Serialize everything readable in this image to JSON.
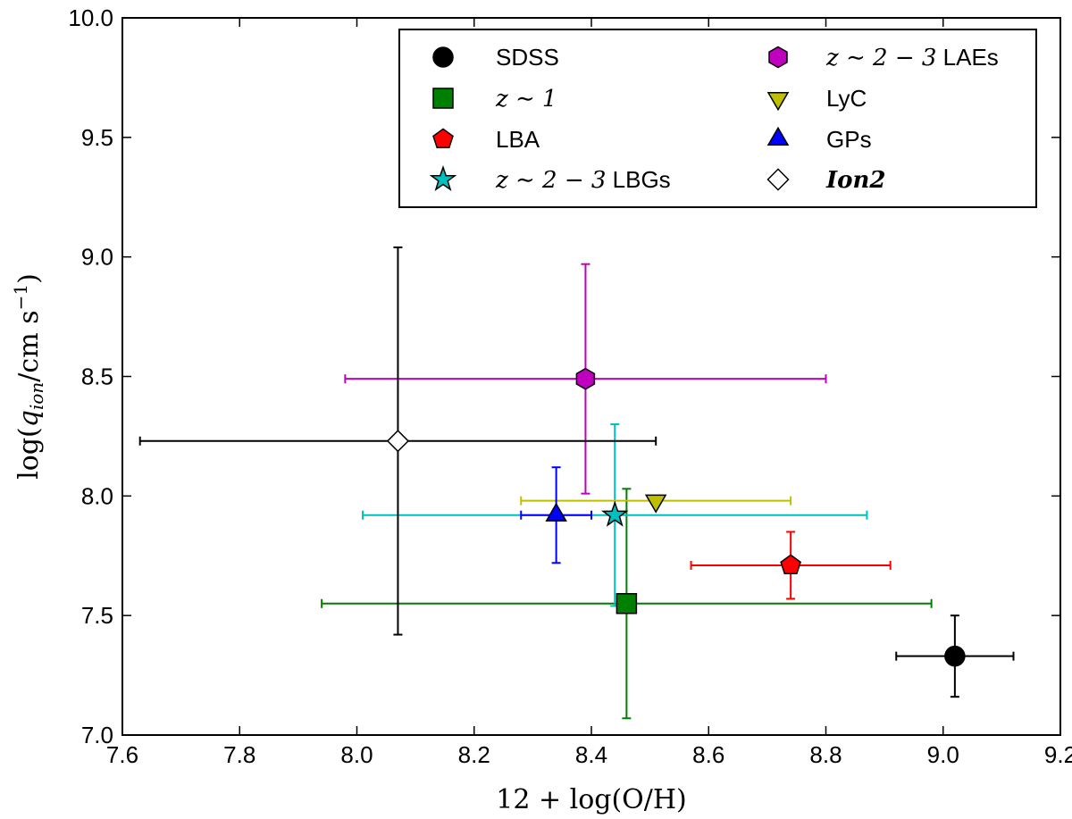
{
  "chart_data": {
    "type": "scatter",
    "title": "",
    "xlabel": "12 + log(O/H)",
    "ylabel": "log(q_ion / cm s⁻¹)",
    "ylabel_parts": {
      "prefix": "log(",
      "q": "q",
      "sub": "ion",
      "mid": "/cm s",
      "sup": "−1",
      "suffix": ")"
    },
    "xlim": [
      7.6,
      9.2
    ],
    "ylim": [
      7.0,
      10.0
    ],
    "x_ticks": [
      7.6,
      7.8,
      8.0,
      8.2,
      8.4,
      8.6,
      8.8,
      9.0,
      9.2
    ],
    "x_tick_labels": [
      "7.6",
      "7.8",
      "8.0",
      "8.2",
      "8.4",
      "8.6",
      "8.8",
      "9.0",
      "9.2"
    ],
    "y_ticks": [
      7.0,
      7.5,
      8.0,
      8.5,
      9.0,
      9.5,
      10.0
    ],
    "y_tick_labels": [
      "7.0",
      "7.5",
      "8.0",
      "8.5",
      "9.0",
      "9.5",
      "10.0"
    ],
    "grid": false,
    "legend_position": "top-right",
    "series": [
      {
        "name": "SDSS",
        "label": "SDSS",
        "label_italic": false,
        "marker": "circle",
        "color": "#000000",
        "ecolor": "#000000",
        "x": 9.02,
        "y": 7.33,
        "xerr": [
          0.1,
          0.1
        ],
        "yerr": [
          0.17,
          0.17
        ]
      },
      {
        "name": "z~1",
        "label": "z ∼ 1",
        "label_italic": true,
        "marker": "square",
        "color": "#007f00",
        "ecolor": "#007f00",
        "x": 8.46,
        "y": 7.55,
        "xerr": [
          0.52,
          0.52
        ],
        "yerr": [
          0.48,
          0.48
        ]
      },
      {
        "name": "LBA",
        "label": "LBA",
        "label_italic": false,
        "marker": "pentagon",
        "color": "#ff0000",
        "ecolor": "#ff0000",
        "x": 8.74,
        "y": 7.71,
        "xerr": [
          0.17,
          0.17
        ],
        "yerr": [
          0.14,
          0.14
        ]
      },
      {
        "name": "z~2-3 LBGs",
        "label": "z ∼ 2 − 3",
        "label_suffix": " LBGs",
        "label_italic": true,
        "marker": "star",
        "color": "#00bfbf",
        "ecolor": "#00bfbf",
        "x": 8.44,
        "y": 7.92,
        "xerr": [
          0.43,
          0.43
        ],
        "yerr": [
          0.38,
          0.38
        ]
      },
      {
        "name": "z~2-3 LAEs",
        "label": "z ∼ 2 − 3",
        "label_suffix": " LAEs",
        "label_italic": true,
        "marker": "hexagon",
        "color": "#bf00bf",
        "ecolor": "#bf00bf",
        "x": 8.39,
        "y": 8.49,
        "xerr": [
          0.41,
          0.41
        ],
        "yerr": [
          0.48,
          0.48
        ]
      },
      {
        "name": "LyC",
        "label": "LyC",
        "label_italic": false,
        "marker": "triangle-down",
        "color": "#bfbf00",
        "ecolor": "#bfbf00",
        "x": 8.51,
        "y": 7.98,
        "xerr": [
          0.23,
          0.23
        ],
        "yerr": [
          0.0,
          0.0
        ]
      },
      {
        "name": "GPs",
        "label": "GPs",
        "label_italic": false,
        "marker": "triangle-up",
        "color": "#0000ff",
        "ecolor": "#0000ff",
        "x": 8.34,
        "y": 7.92,
        "xerr": [
          0.06,
          0.06
        ],
        "yerr": [
          0.2,
          0.2
        ]
      },
      {
        "name": "Ion2",
        "label": "Ion2",
        "label_italic": true,
        "marker": "diamond",
        "color": "#ffffff",
        "ecolor": "#000000",
        "x": 8.07,
        "y": 8.23,
        "xerr": [
          0.44,
          0.44
        ],
        "yerr": [
          0.81,
          0.81
        ]
      }
    ]
  }
}
